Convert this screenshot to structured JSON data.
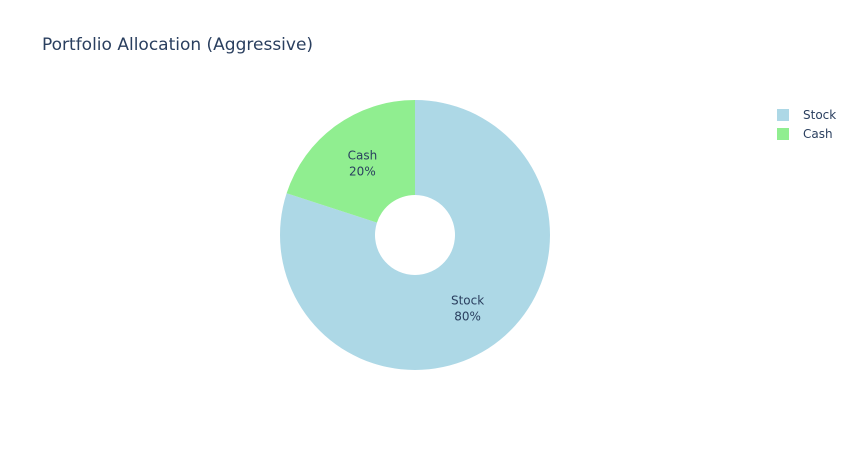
{
  "chart_data": {
    "type": "pie",
    "title": "Portfolio Allocation (Aggressive)",
    "hole": true,
    "labels": [
      "Stock",
      "Cash"
    ],
    "values": [
      80,
      20
    ],
    "colors": [
      "#add8e6",
      "#90ee90"
    ],
    "slice_texts": [
      [
        "Stock",
        "80%"
      ],
      [
        "Cash",
        "20%"
      ]
    ],
    "legend": {
      "placement": "top-right",
      "entries": [
        "Stock",
        "Cash"
      ]
    }
  }
}
